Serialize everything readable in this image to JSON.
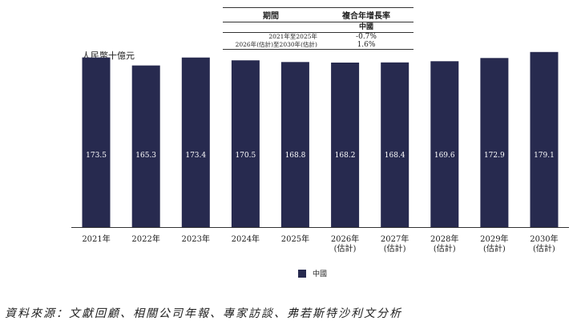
{
  "colors": {
    "bar": "#272A4F",
    "bar_label": "#ffffff",
    "axis": "#333333"
  },
  "cagr_table": {
    "col1_header": "期間",
    "col2_header": "複合年增長率",
    "col2_subheader": "中國",
    "rows": [
      {
        "period": "2021年至2025年",
        "rate": "-0.7%"
      },
      {
        "period": "2026年(估計)至2030年(估計)",
        "rate": "1.6%"
      }
    ]
  },
  "unit_label": "人民幣十億元",
  "legend": {
    "label": "中國"
  },
  "source": "資料來源：文獻回顧、相關公司年報、專家訪談、弗若斯特沙利文分析",
  "chart_data": {
    "type": "bar",
    "categories": [
      [
        "2021年"
      ],
      [
        "2022年"
      ],
      [
        "2023年"
      ],
      [
        "2024年"
      ],
      [
        "2025年"
      ],
      [
        "2026年",
        "(估計)"
      ],
      [
        "2027年",
        "(估計)"
      ],
      [
        "2028年",
        "(估計)"
      ],
      [
        "2029年",
        "(估計)"
      ],
      [
        "2030年",
        "(估計)"
      ]
    ],
    "series": [
      {
        "name": "中國",
        "values": [
          173.5,
          165.3,
          173.4,
          170.5,
          168.8,
          168.2,
          168.4,
          169.6,
          172.9,
          179.1
        ]
      }
    ],
    "ylabel": "人民幣十億元",
    "grid": false,
    "legend_position": "bottom"
  }
}
